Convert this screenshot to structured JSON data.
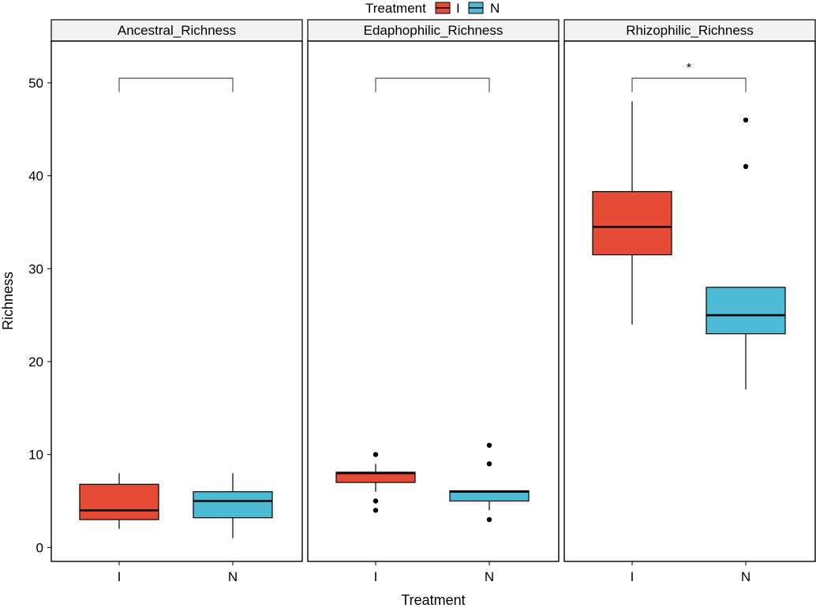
{
  "chart_data": {
    "type": "boxplot",
    "xlabel": "Treatment",
    "ylabel": "Richness",
    "ylim": [
      -1.5,
      54.5
    ],
    "yticks": [
      0,
      10,
      20,
      30,
      40,
      50
    ],
    "categories": [
      "I",
      "N"
    ],
    "legend": {
      "title": "Treatment",
      "position": "top",
      "entries": [
        {
          "label": "I",
          "color": "#E64B35"
        },
        {
          "label": "N",
          "color": "#4DBBD5"
        }
      ]
    },
    "colors": {
      "I": "#E64B35",
      "N": "#4DBBD5"
    },
    "panels": [
      {
        "title": "Ancestral_Richness",
        "significance": {
          "label": "",
          "y": 50.5
        },
        "boxes": [
          {
            "group": "I",
            "lower_whisker": 2,
            "q1": 3,
            "median": 4,
            "q3": 6.8,
            "upper_whisker": 8,
            "outliers": []
          },
          {
            "group": "N",
            "lower_whisker": 1,
            "q1": 3.2,
            "median": 5,
            "q3": 6,
            "upper_whisker": 8,
            "outliers": []
          }
        ]
      },
      {
        "title": "Edaphophilic_Richness",
        "significance": {
          "label": "",
          "y": 50.5
        },
        "boxes": [
          {
            "group": "I",
            "lower_whisker": 6,
            "q1": 7,
            "median": 8,
            "q3": 8.1,
            "upper_whisker": 9,
            "outliers": [
              4,
              5,
              10
            ]
          },
          {
            "group": "N",
            "lower_whisker": 4,
            "q1": 5,
            "median": 6,
            "q3": 6.1,
            "upper_whisker": 6.1,
            "outliers": [
              3,
              9,
              11
            ]
          }
        ]
      },
      {
        "title": "Rhizophilic_Richness",
        "significance": {
          "label": "*",
          "y": 50.5
        },
        "boxes": [
          {
            "group": "I",
            "lower_whisker": 24,
            "q1": 31.5,
            "median": 34.5,
            "q3": 38.3,
            "upper_whisker": 48,
            "outliers": []
          },
          {
            "group": "N",
            "lower_whisker": 17,
            "q1": 23,
            "median": 25,
            "q3": 28,
            "upper_whisker": 28,
            "outliers": [
              41,
              46
            ]
          }
        ]
      }
    ]
  }
}
